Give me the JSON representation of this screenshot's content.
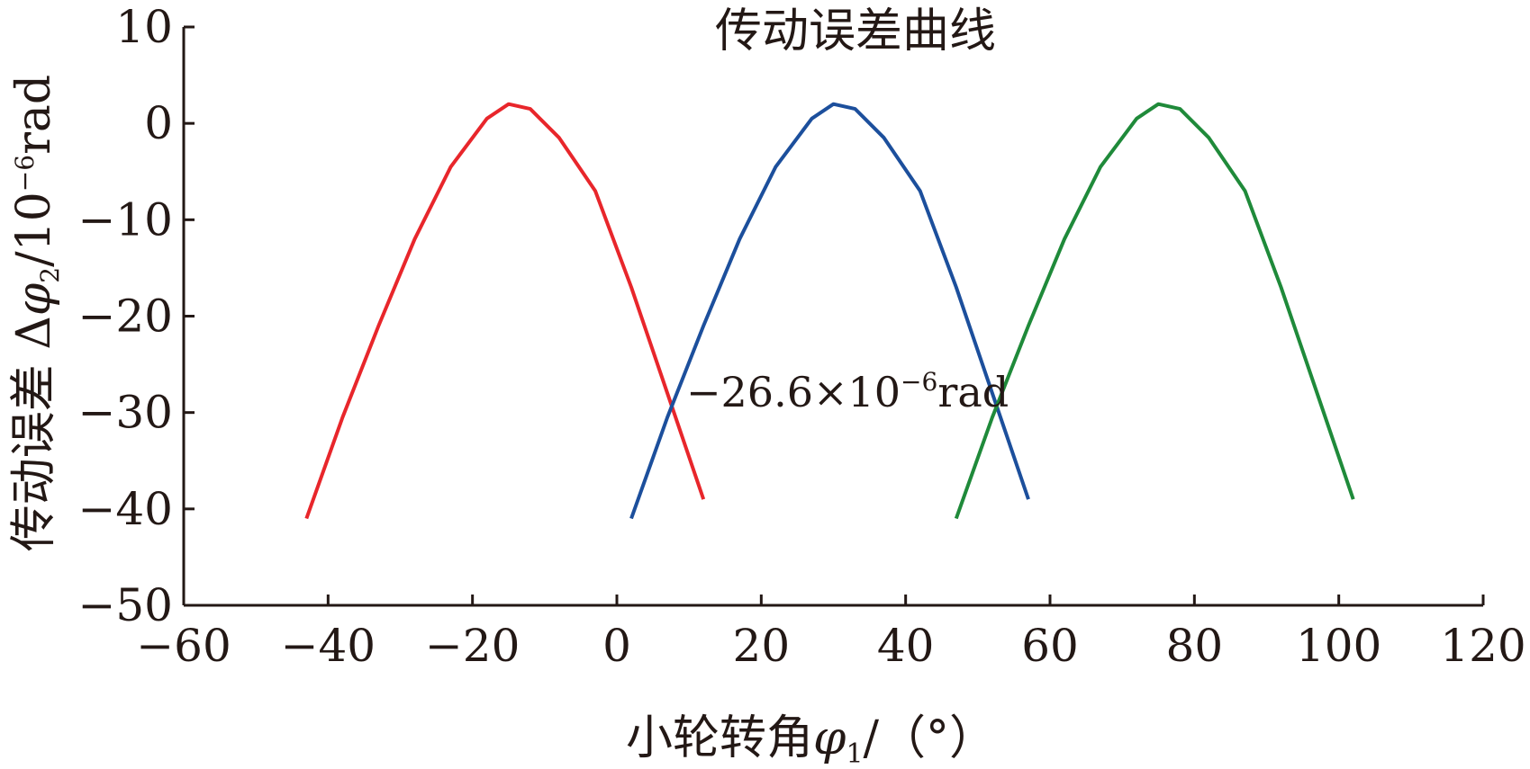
{
  "chart_data": {
    "type": "line",
    "title": "传动误差曲线",
    "xlabel": {
      "main": "小轮转角",
      "symbol": "φ",
      "sub": "1",
      "unit": "/（°）"
    },
    "ylabel": {
      "main": "传动误差 Δ",
      "symbol": "φ",
      "sub": "2",
      "unit_pre": "/10",
      "unit_exp": "−6",
      "unit_post": "rad"
    },
    "xlim": [
      -60,
      120
    ],
    "ylim": [
      -50,
      10
    ],
    "xticks": [
      -60,
      -40,
      -20,
      0,
      20,
      40,
      60,
      80,
      100,
      120
    ],
    "xtick_labels": [
      "−60",
      "−40",
      "−20",
      "0",
      "20",
      "40",
      "60",
      "80",
      "100",
      "120"
    ],
    "yticks": [
      10,
      0,
      -10,
      -20,
      -30,
      -40,
      -50
    ],
    "ytick_labels": [
      "10",
      "0",
      "−10",
      "−20",
      "−30",
      "−40",
      "−50"
    ],
    "grid": false,
    "annotation": {
      "main": "−26.6×10",
      "exp": "−6",
      "post": "rad",
      "x": 7.6,
      "y": -26.6
    },
    "series": [
      {
        "color": "#e8262b",
        "x": [
          -43,
          -38,
          -33,
          -28,
          -23,
          -18,
          -15,
          -12,
          -8,
          -3,
          2,
          7,
          12
        ],
        "y": [
          -41,
          -30.5,
          -21,
          -12,
          -4.5,
          0.5,
          2,
          1.5,
          -1.5,
          -7,
          -17,
          -28,
          -39
        ]
      },
      {
        "color": "#1c4f9c",
        "x": [
          2,
          7,
          12,
          17,
          22,
          27,
          30,
          33,
          37,
          42,
          47,
          52,
          57
        ],
        "y": [
          -41,
          -30.5,
          -21,
          -12,
          -4.5,
          0.5,
          2,
          1.5,
          -1.5,
          -7,
          -17,
          -28,
          -39
        ]
      },
      {
        "color": "#1f8a3a",
        "x": [
          47,
          52,
          57,
          62,
          67,
          72,
          75,
          78,
          82,
          87,
          92,
          97,
          102
        ],
        "y": [
          -41,
          -30.5,
          -21,
          -12,
          -4.5,
          0.5,
          2,
          1.5,
          -1.5,
          -7,
          -17,
          -28,
          -39
        ]
      }
    ]
  }
}
